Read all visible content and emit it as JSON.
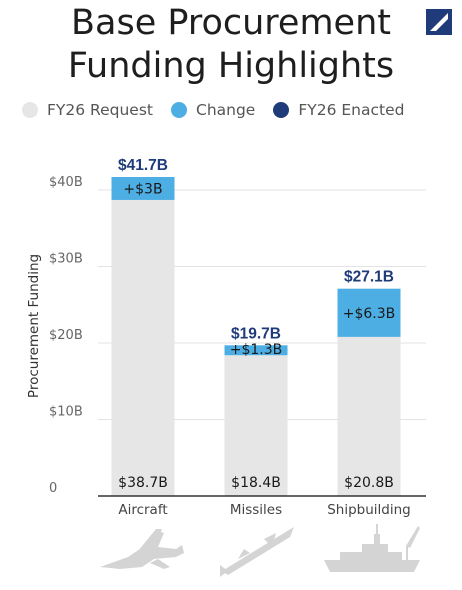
{
  "title": {
    "line1": "Base Procurement",
    "line2": "Funding Highlights"
  },
  "colors": {
    "request": "#e6e6e6",
    "change": "#4daee3",
    "enacted": "#1f3b7a",
    "total_label": "#1f3b7a",
    "axis": "#333333",
    "grid": "#e3e3e3",
    "silhouette": "#d4d4d4"
  },
  "icons": [
    "fighter-jet-icon",
    "missile-icon",
    "warship-icon",
    "logo-icon"
  ],
  "chart_data": {
    "type": "bar",
    "stacked": true,
    "title": "Base Procurement Funding Highlights",
    "ylabel": "Procurement Funding",
    "xlabel": "",
    "ylim": [
      0,
      44
    ],
    "yticks": [
      0,
      10,
      20,
      30,
      40
    ],
    "ytick_labels": [
      "0",
      "$10B",
      "$20B",
      "$30B",
      "$40B"
    ],
    "grid": true,
    "legend_position": "top",
    "legend": [
      "FY26 Request",
      "Change",
      "FY26 Enacted"
    ],
    "categories": [
      "Aircraft",
      "Missiles",
      "Shipbuilding"
    ],
    "series": [
      {
        "name": "FY26 Request",
        "values": [
          38.7,
          18.4,
          20.8
        ],
        "labels": [
          "$38.7B",
          "$18.4B",
          "$20.8B"
        ]
      },
      {
        "name": "Change",
        "values": [
          3.0,
          1.3,
          6.3
        ],
        "labels": [
          "+$3B",
          "+$1.3B",
          "+$6.3B"
        ]
      }
    ],
    "totals": {
      "name": "FY26 Enacted",
      "values": [
        41.7,
        19.7,
        27.1
      ],
      "labels": [
        "$41.7B",
        "$19.7B",
        "$27.1B"
      ]
    }
  }
}
